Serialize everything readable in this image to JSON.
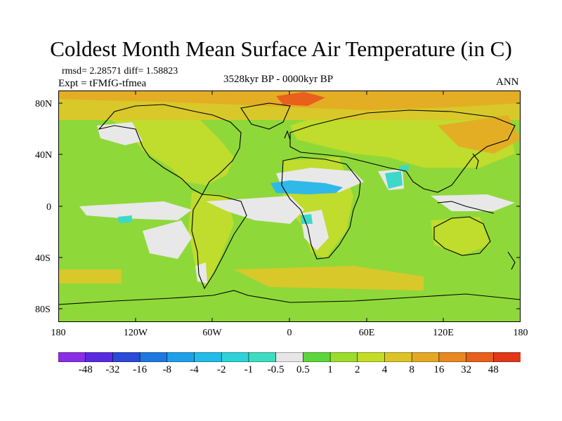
{
  "figure": {
    "title": "Coldest Month Mean Surface Air Temperature (in C)",
    "stats": "rmsd= 2.28571 diff= 1.58823",
    "experiment": "Expt = tFMfG-tfmea",
    "period": "3528kyr BP - 0000kyr BP",
    "season": "ANN"
  },
  "map": {
    "lat_labels": [
      "80N",
      "40N",
      "0",
      "40S",
      "80S"
    ],
    "lon_labels": [
      "180",
      "120W",
      "60W",
      "0",
      "60E",
      "120E",
      "180"
    ],
    "colors": {
      "base": "#8fd83a",
      "land_warm": "#c0dc2c",
      "ocean_mid": "#88d84a",
      "warm": "#d8c82a",
      "warmer": "#e4ae24",
      "hot": "#e88a20",
      "very_hot": "#e8601c",
      "neutral": "#e8e8e8",
      "cool": "#3ed8c8",
      "cold": "#30b8e8",
      "coastline": "#000000"
    }
  },
  "colorbar": {
    "labels": [
      "-48",
      "-32",
      "-16",
      "-8",
      "-4",
      "-2",
      "-1",
      "-0.5",
      "0.5",
      "1",
      "2",
      "4",
      "8",
      "16",
      "32",
      "48"
    ],
    "colors": [
      "#8a2ee6",
      "#5a2ae0",
      "#2a4ad8",
      "#1e78e0",
      "#1ea0e8",
      "#22bce8",
      "#2ed2d8",
      "#3edcc0",
      "#e6e6e6",
      "#5cd63c",
      "#9cdc2c",
      "#c4dc28",
      "#dcc428",
      "#e4a824",
      "#e88820",
      "#e8601c",
      "#e03818"
    ]
  }
}
